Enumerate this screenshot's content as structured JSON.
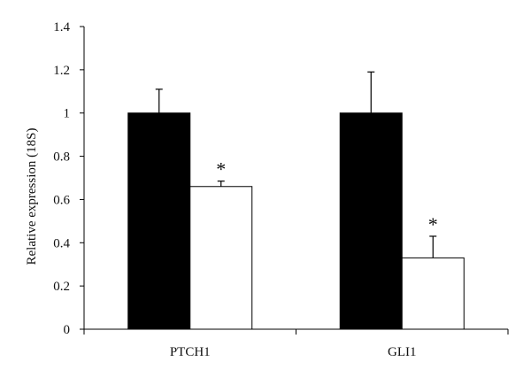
{
  "chart_data": {
    "type": "bar",
    "categories": [
      "PTCH1",
      "GLI1"
    ],
    "series": [
      {
        "values": [
          1.0,
          1.0
        ],
        "errors": [
          0.11,
          0.19
        ],
        "color": "#000000"
      },
      {
        "values": [
          0.66,
          0.33
        ],
        "errors": [
          0.025,
          0.1
        ],
        "color": "#ffffff"
      }
    ],
    "significance": [
      "*",
      "*"
    ],
    "significance_series": 1,
    "ylabel": "Relative expression (18S)",
    "ylim": [
      0,
      1.4
    ],
    "yticks": [
      0,
      0.2,
      0.4,
      0.6,
      0.8,
      1,
      1.2,
      1.4
    ],
    "ytick_labels": [
      "0",
      "0.2",
      "0.4",
      "0.6",
      "0.8",
      "1",
      "1.2",
      "1.4"
    ],
    "grid": false,
    "legend": "none"
  }
}
